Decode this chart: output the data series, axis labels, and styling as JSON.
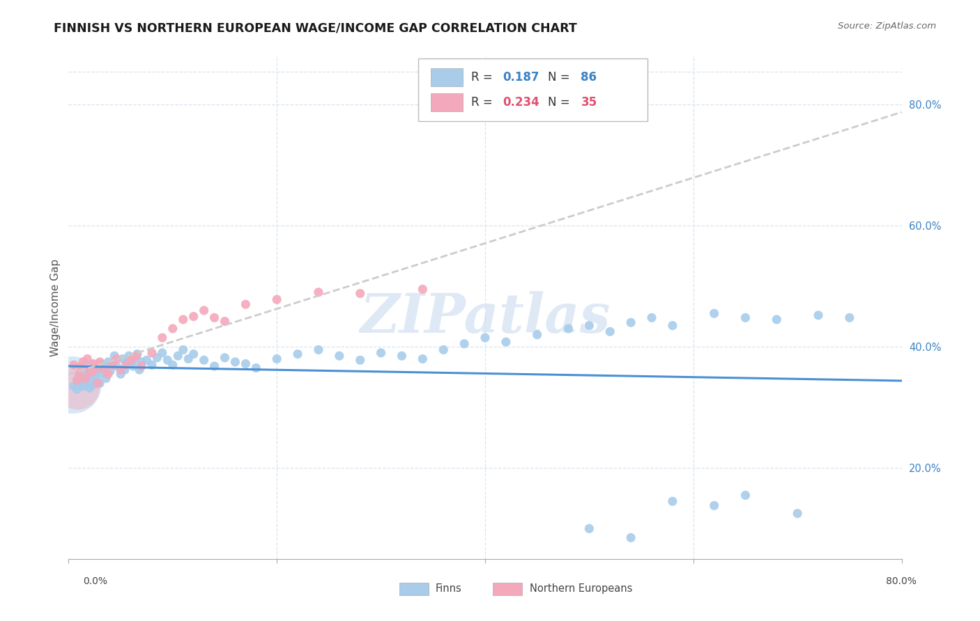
{
  "title": "FINNISH VS NORTHERN EUROPEAN WAGE/INCOME GAP CORRELATION CHART",
  "source": "Source: ZipAtlas.com",
  "ylabel": "Wage/Income Gap",
  "right_yticks": [
    "80.0%",
    "60.0%",
    "40.0%",
    "20.0%"
  ],
  "right_ytick_vals": [
    0.8,
    0.6,
    0.4,
    0.2
  ],
  "blue_color": "#a8ccea",
  "pink_color": "#f4a8bb",
  "blue_line_color": "#4a90d4",
  "pink_line_color": "#c8c8c8",
  "watermark": "ZIPatlas",
  "background_color": "#ffffff",
  "grid_color": "#d8e4f0",
  "xmin": 0.0,
  "xmax": 0.8,
  "ymin": 0.05,
  "ymax": 0.88,
  "finns_x": [
    0.005,
    0.008,
    0.01,
    0.01,
    0.012,
    0.012,
    0.014,
    0.015,
    0.016,
    0.016,
    0.018,
    0.02,
    0.02,
    0.022,
    0.022,
    0.024,
    0.025,
    0.026,
    0.028,
    0.03,
    0.03,
    0.032,
    0.034,
    0.036,
    0.038,
    0.04,
    0.042,
    0.044,
    0.046,
    0.05,
    0.052,
    0.054,
    0.056,
    0.058,
    0.06,
    0.062,
    0.064,
    0.066,
    0.068,
    0.07,
    0.075,
    0.08,
    0.085,
    0.09,
    0.095,
    0.1,
    0.105,
    0.11,
    0.115,
    0.12,
    0.13,
    0.14,
    0.15,
    0.16,
    0.17,
    0.18,
    0.2,
    0.22,
    0.24,
    0.26,
    0.28,
    0.3,
    0.32,
    0.34,
    0.36,
    0.38,
    0.4,
    0.42,
    0.45,
    0.48,
    0.5,
    0.52,
    0.54,
    0.56,
    0.58,
    0.62,
    0.65,
    0.68,
    0.72,
    0.75,
    0.5,
    0.54,
    0.58,
    0.62,
    0.65,
    0.7
  ],
  "finns_y": [
    0.335,
    0.33,
    0.338,
    0.345,
    0.34,
    0.35,
    0.335,
    0.342,
    0.348,
    0.338,
    0.355,
    0.332,
    0.36,
    0.345,
    0.37,
    0.338,
    0.365,
    0.352,
    0.362,
    0.34,
    0.372,
    0.355,
    0.368,
    0.348,
    0.375,
    0.36,
    0.372,
    0.385,
    0.368,
    0.355,
    0.38,
    0.362,
    0.375,
    0.385,
    0.372,
    0.368,
    0.38,
    0.388,
    0.362,
    0.375,
    0.378,
    0.37,
    0.382,
    0.39,
    0.378,
    0.37,
    0.385,
    0.395,
    0.38,
    0.388,
    0.378,
    0.368,
    0.382,
    0.375,
    0.372,
    0.365,
    0.38,
    0.388,
    0.395,
    0.385,
    0.378,
    0.39,
    0.385,
    0.38,
    0.395,
    0.405,
    0.415,
    0.408,
    0.42,
    0.43,
    0.435,
    0.425,
    0.44,
    0.448,
    0.435,
    0.455,
    0.448,
    0.445,
    0.452,
    0.448,
    0.1,
    0.085,
    0.145,
    0.138,
    0.155,
    0.125
  ],
  "ne_x": [
    0.005,
    0.008,
    0.01,
    0.012,
    0.014,
    0.016,
    0.018,
    0.02,
    0.022,
    0.024,
    0.026,
    0.028,
    0.03,
    0.034,
    0.038,
    0.042,
    0.046,
    0.05,
    0.055,
    0.06,
    0.065,
    0.07,
    0.08,
    0.09,
    0.1,
    0.11,
    0.12,
    0.13,
    0.14,
    0.15,
    0.17,
    0.2,
    0.24,
    0.28,
    0.34
  ],
  "ne_y": [
    0.37,
    0.345,
    0.355,
    0.368,
    0.375,
    0.348,
    0.38,
    0.362,
    0.358,
    0.372,
    0.365,
    0.34,
    0.375,
    0.362,
    0.355,
    0.37,
    0.38,
    0.362,
    0.37,
    0.378,
    0.385,
    0.368,
    0.39,
    0.415,
    0.43,
    0.445,
    0.45,
    0.46,
    0.448,
    0.442,
    0.47,
    0.478,
    0.49,
    0.488,
    0.495
  ]
}
